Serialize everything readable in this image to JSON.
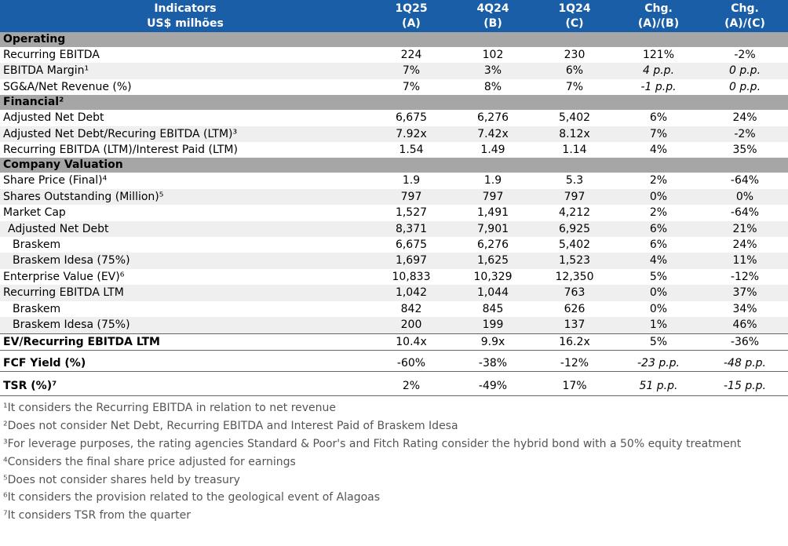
{
  "header": {
    "indicators": "Indicators",
    "unit": "US$ milhões",
    "cols": [
      {
        "period": "1Q25",
        "tag": "(A)"
      },
      {
        "period": "4Q24",
        "tag": "(B)"
      },
      {
        "period": "1Q24",
        "tag": "(C)"
      },
      {
        "period": "Chg.",
        "tag": "(A)/(B)"
      },
      {
        "period": "Chg.",
        "tag": "(A)/(C)"
      }
    ]
  },
  "sections": {
    "operating": "Operating",
    "financial": "Financial²",
    "valuation": "Company Valuation"
  },
  "rows": {
    "operating": [
      [
        "Recurring EBITDA",
        "224",
        "102",
        "230",
        "121%",
        "-2%"
      ],
      [
        "EBITDA Margin¹",
        "7%",
        "3%",
        "6%",
        "4 p.p.",
        "0 p.p."
      ],
      [
        "SG&A/Net Revenue (%)",
        "7%",
        "8%",
        "7%",
        "-1 p.p.",
        "0 p.p."
      ]
    ],
    "financial": [
      [
        "Adjusted Net Debt",
        "6,675",
        "6,276",
        "5,402",
        "6%",
        "24%"
      ],
      [
        "Adjusted Net Debt/Recuring EBITDA (LTM)³",
        "7.92x",
        "7.42x",
        "8.12x",
        "7%",
        "-2%"
      ],
      [
        "Recurring EBITDA (LTM)/Interest Paid (LTM)",
        "1.54",
        "1.49",
        "1.14",
        "4%",
        "35%"
      ]
    ],
    "valuation": [
      [
        "Share Price (Final)⁴",
        "1.9",
        "1.9",
        "5.3",
        "2%",
        "-64%"
      ],
      [
        "Shares Outstanding (Million)⁵",
        "797",
        "797",
        "797",
        "0%",
        "0%"
      ],
      [
        "Market Cap",
        "1,527",
        "1,491",
        "4,212",
        "2%",
        "-64%"
      ],
      [
        "Adjusted Net Debt",
        "8,371",
        "7,901",
        "6,925",
        "6%",
        "21%"
      ],
      [
        "Braskem",
        "6,675",
        "6,276",
        "5,402",
        "6%",
        "24%"
      ],
      [
        "Braskem Idesa (75%)",
        "1,697",
        "1,625",
        "1,523",
        "4%",
        "11%"
      ],
      [
        "Enterprise Value (EV)⁶",
        "10,833",
        "10,329",
        "12,350",
        "5%",
        "-12%"
      ],
      [
        "Recurring EBITDA LTM",
        "1,042",
        "1,044",
        "763",
        "0%",
        "37%"
      ],
      [
        "Braskem",
        "842",
        "845",
        "626",
        "0%",
        "34%"
      ],
      [
        "Braskem Idesa (75%)",
        "200",
        "199",
        "137",
        "1%",
        "46%"
      ]
    ],
    "ev_ebitda": [
      "EV/Recurring EBITDA LTM",
      "10.4x",
      "9.9x",
      "16.2x",
      "5%",
      "-36%"
    ],
    "fcf": [
      "FCF Yield (%)",
      "-60%",
      "-38%",
      "-12%",
      "-23 p.p.",
      "-48 p.p."
    ],
    "tsr": [
      "TSR (%)⁷",
      "2%",
      "-49%",
      "17%",
      "51 p.p.",
      "-15 p.p."
    ]
  },
  "footnotes": [
    "¹It considers the Recurring EBITDA in relation to net revenue",
    "²Does not consider Net Debt, Recurring EBITDA and Interest Paid of Braskem Idesa",
    "³For leverage purposes, the rating agencies Standard & Poor's and Fitch Rating consider the hybrid bond with a 50% equity treatment",
    "⁴Considers the final share price adjusted for earnings",
    "⁵Does not consider shares held by treasury",
    "⁶It considers the provision related to the geological event of Alagoas",
    "⁷It considers TSR from the quarter"
  ]
}
